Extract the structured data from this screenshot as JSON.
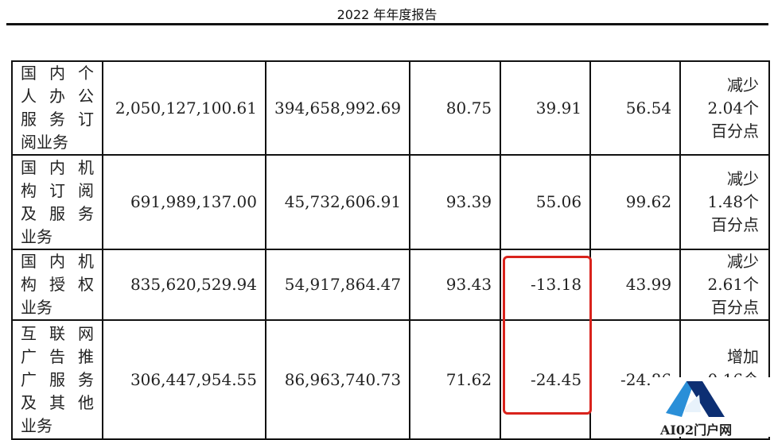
{
  "header": {
    "title": "2022 年年度报告"
  },
  "table": {
    "rows": [
      {
        "name": [
          "国 内 个",
          "人 办 公",
          "服 务 订",
          "阅业务"
        ],
        "revenue": "2,050,127,100.61",
        "cost": "394,658,992.69",
        "margin": "80.75",
        "revenue_change": "39.91",
        "cost_change": "56.54",
        "margin_change": [
          "减少",
          "2.04个",
          "百分点"
        ]
      },
      {
        "name": [
          "国 内 机",
          "构 订 阅",
          "及 服 务",
          "业务"
        ],
        "revenue": "691,989,137.00",
        "cost": "45,732,606.91",
        "margin": "93.39",
        "revenue_change": "55.06",
        "cost_change": "99.62",
        "margin_change": [
          "减少",
          "1.48个",
          "百分点"
        ]
      },
      {
        "name": [
          "国 内 机",
          "构 授 权",
          "业务"
        ],
        "revenue": "835,620,529.94",
        "cost": "54,917,864.47",
        "margin": "93.43",
        "revenue_change": "-13.18",
        "cost_change": "43.99",
        "margin_change": [
          "减少",
          "2.61个",
          "百分点"
        ]
      },
      {
        "name": [
          "互 联 网",
          "广 告 推",
          "广 服 务",
          "及 其 他",
          "业务"
        ],
        "revenue": "306,447,954.55",
        "cost": "86,963,740.73",
        "margin": "71.62",
        "revenue_change": "-24.45",
        "cost_change": "-24.86",
        "margin_change": [
          "增加",
          "0.16个",
          ""
        ]
      }
    ]
  },
  "highlight_color": "#d9231c",
  "watermark": {
    "text": "AI02门户网",
    "icon": "letter-a-logo-icon"
  }
}
